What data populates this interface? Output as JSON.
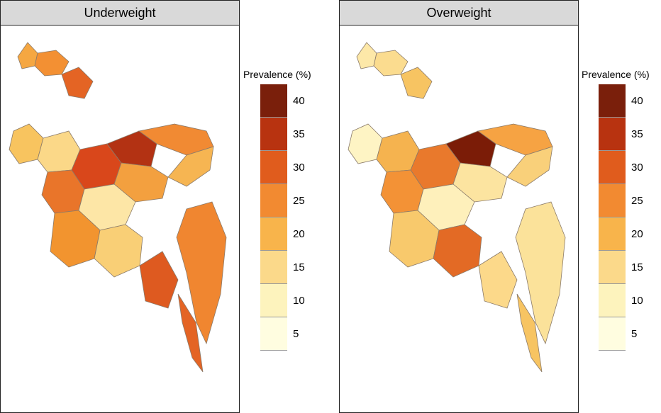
{
  "panels": [
    {
      "title": "Underweight",
      "legend_title": "Prevalence (%)",
      "district_fills": [
        "#f5a742",
        "#f39033",
        "#e46424",
        "#f8c45f",
        "#fbd888",
        "#d9471b",
        "#b33213",
        "#f18a33",
        "#f3a03f",
        "#f6b552",
        "#e9752a",
        "#fde6a6",
        "#f2942f",
        "#f9cf76",
        "#de5a20",
        "#f08630"
      ]
    },
    {
      "title": "Overweight",
      "legend_title": "Prevalence (%)",
      "district_fills": [
        "#fde8a8",
        "#fbdc8f",
        "#f7c462",
        "#fef4c4",
        "#f5b34f",
        "#e9792c",
        "#7b1c07",
        "#f6a343",
        "#fce4a0",
        "#f9d07a",
        "#f39236",
        "#fef0bb",
        "#f8c96c",
        "#e36a25",
        "#fcd98a",
        "#fbe29a"
      ]
    }
  ],
  "legend": {
    "bins": [
      "40",
      "35",
      "30",
      "25",
      "20",
      "15",
      "10",
      "5"
    ],
    "colors": [
      "#7a1f0b",
      "#b83310",
      "#e05c1d",
      "#f28a31",
      "#f8b44b",
      "#fbd98a",
      "#fdf3bd",
      "#fffde0"
    ]
  }
}
